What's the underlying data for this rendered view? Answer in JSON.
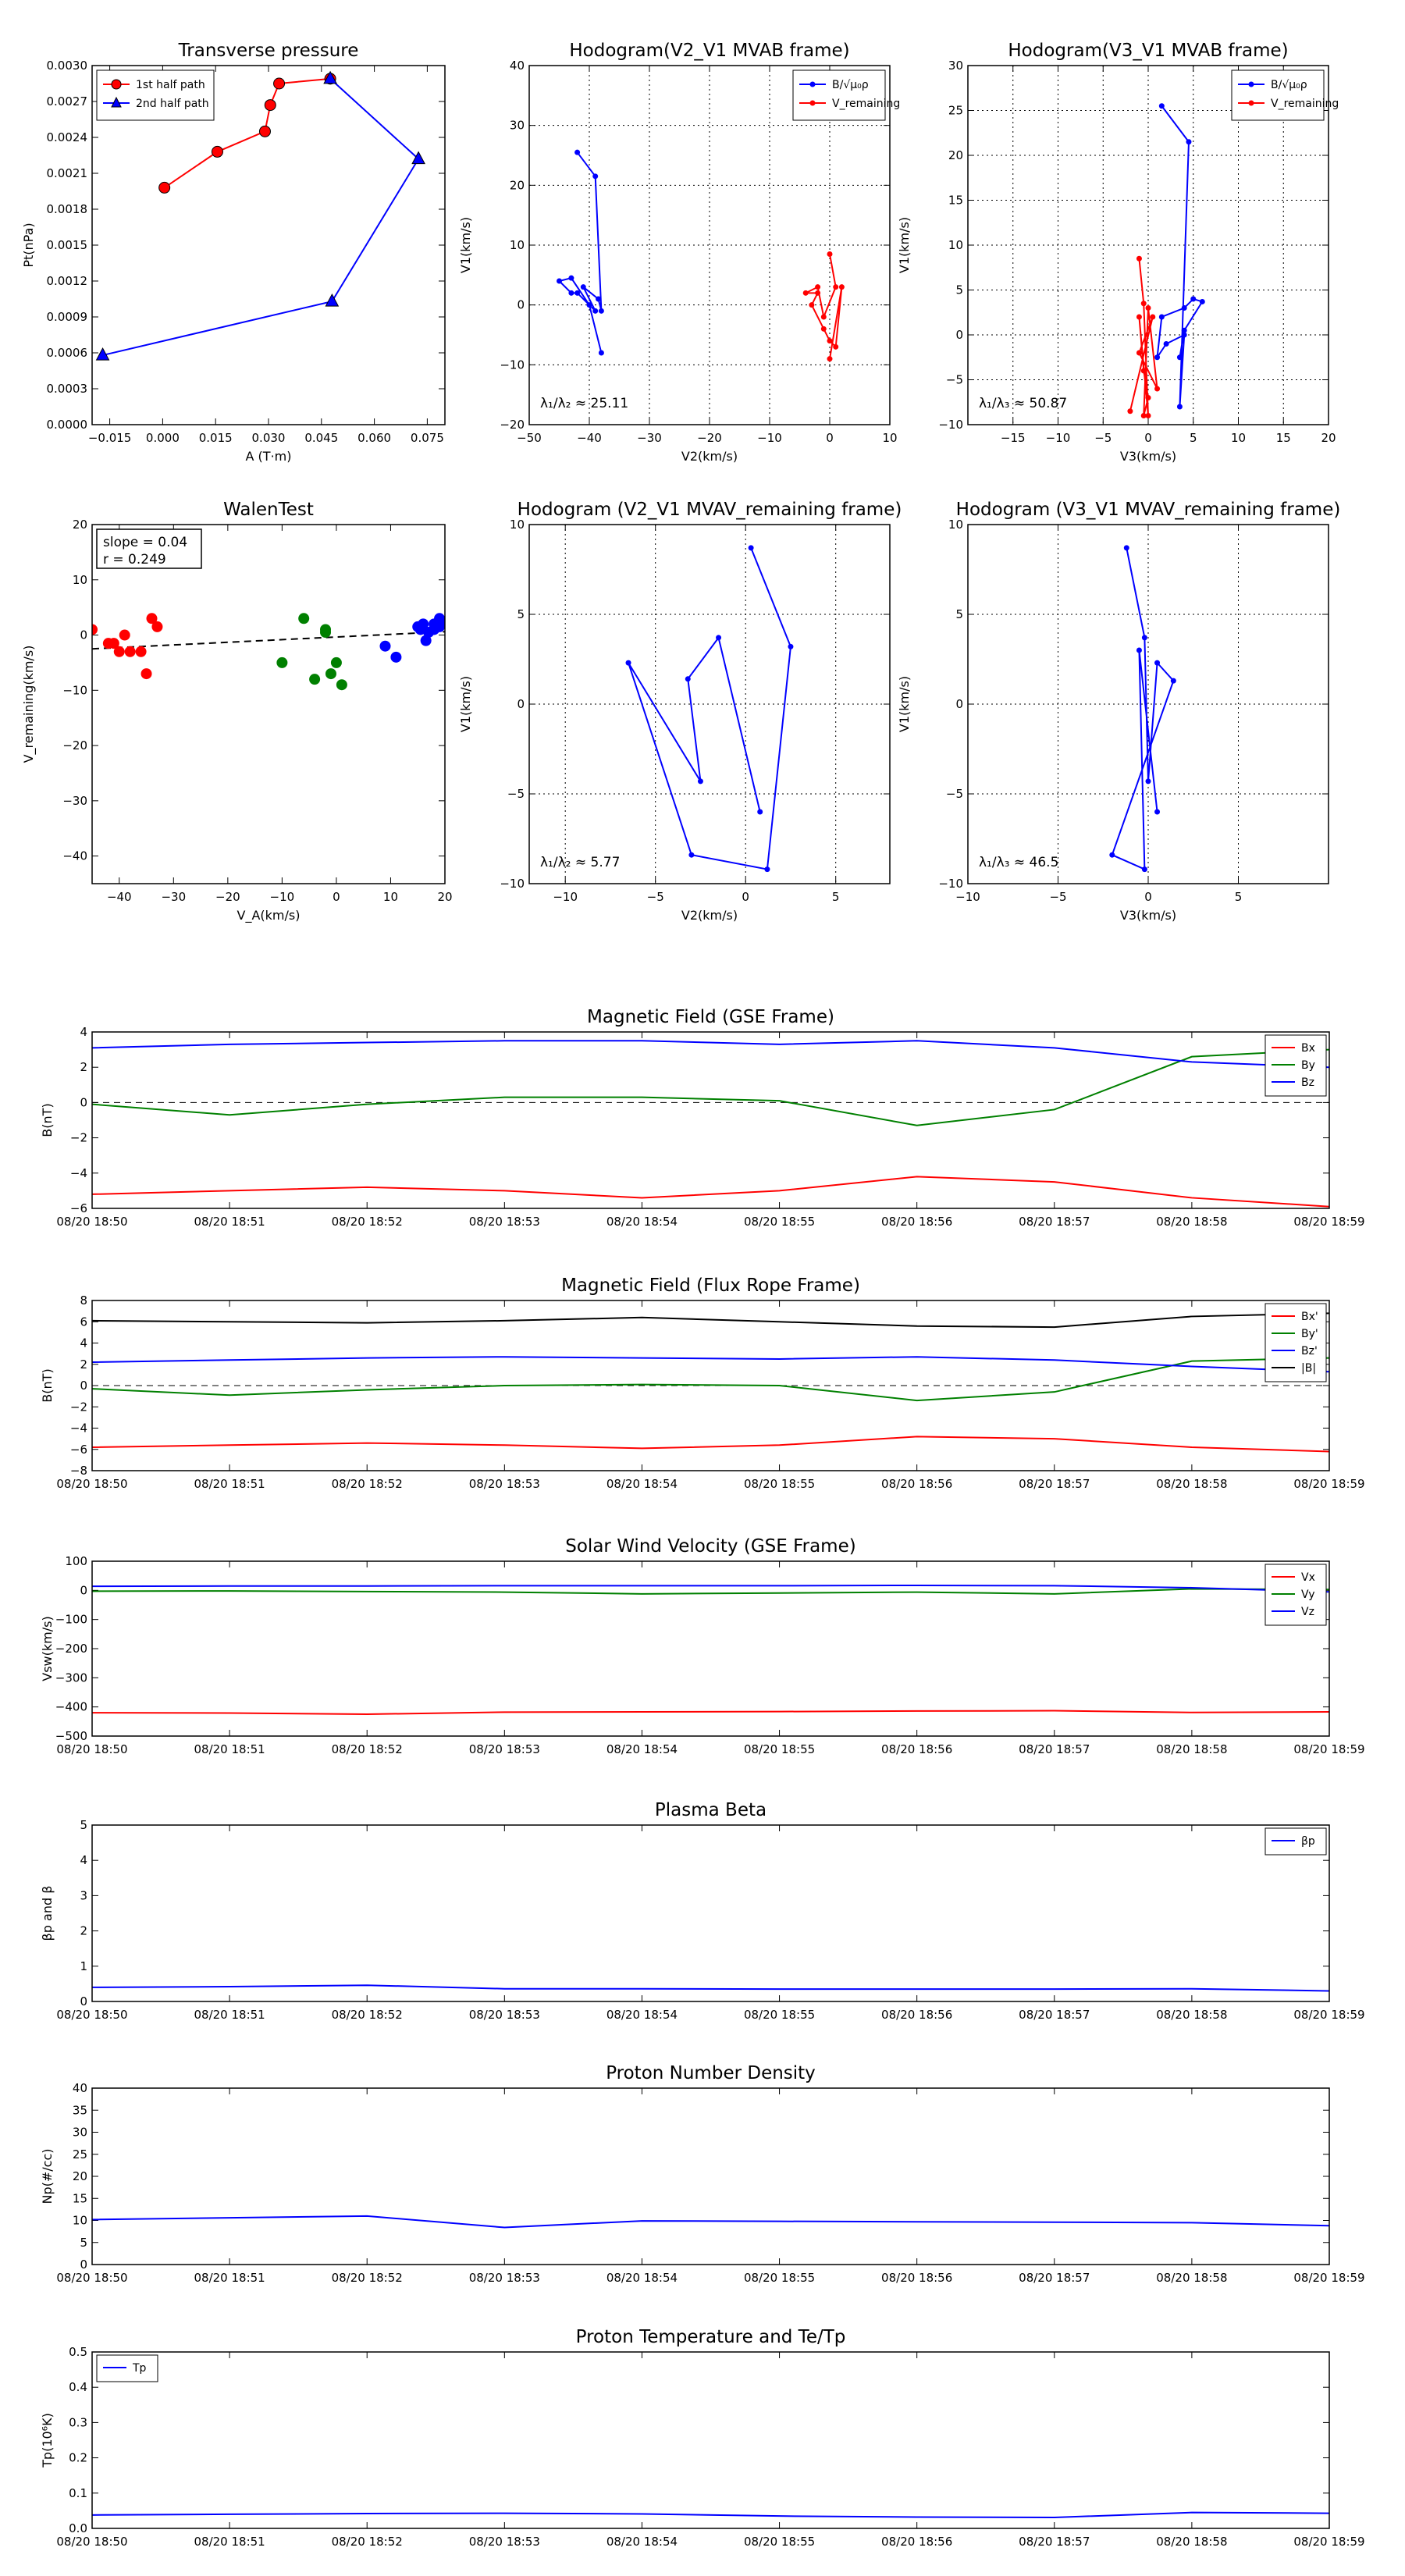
{
  "charts": [
    {
      "id": "p1",
      "type": "line",
      "title": "Transverse pressure",
      "xlabel": "A (T·m)",
      "ylabel": "Pt(nPa)",
      "xlim": [
        -0.02,
        0.08
      ],
      "ylim": [
        0,
        0.003
      ],
      "xticks": [
        -0.015,
        0,
        0.015,
        0.03,
        0.045,
        0.06,
        0.075
      ],
      "xtick_labels": [
        "−0.015",
        "0.000",
        "0.015",
        "0.030",
        "0.045",
        "0.060",
        "0.075"
      ],
      "yticks": [
        0,
        0.0003,
        0.0006,
        0.0009,
        0.0012,
        0.0015,
        0.0018,
        0.0021,
        0.0024,
        0.0027,
        0.003
      ],
      "ytick_labels": [
        "0.0000",
        "0.0003",
        "0.0006",
        "0.0009",
        "0.0012",
        "0.0015",
        "0.0018",
        "0.0021",
        "0.0024",
        "0.0027",
        "0.0030"
      ],
      "grid": false,
      "legend": "top-left",
      "series": [
        {
          "name": "1st half path",
          "color": "#ff0000",
          "marker": "circle",
          "x": [
            0.0005,
            0.0155,
            0.029,
            0.0305,
            0.033,
            0.0475
          ],
          "y": [
            0.00198,
            0.00228,
            0.00245,
            0.00267,
            0.00285,
            0.00289
          ]
        },
        {
          "name": "2nd half path",
          "color": "#0000ff",
          "marker": "triangle",
          "x": [
            0.0475,
            0.0725,
            0.048,
            -0.017
          ],
          "y": [
            0.00289,
            0.00222,
            0.00103,
            0.00058
          ]
        }
      ]
    },
    {
      "id": "p2",
      "type": "line",
      "title": "Hodogram(V2_V1 MVAB frame)",
      "xlabel": "V2(km/s)",
      "ylabel": "V1(km/s)",
      "xlim": [
        -50,
        10
      ],
      "ylim": [
        -20,
        40
      ],
      "xticks": [
        -50,
        -40,
        -30,
        -20,
        -10,
        0,
        10
      ],
      "xtick_labels": [
        "−50",
        "−40",
        "−30",
        "−20",
        "−10",
        "0",
        "10"
      ],
      "yticks": [
        -20,
        -10,
        0,
        10,
        20,
        30,
        40
      ],
      "ytick_labels": [
        "−20",
        "−10",
        "0",
        "10",
        "20",
        "30",
        "40"
      ],
      "grid": true,
      "legend": "top-right",
      "annotation": "λ₁/λ₂ ≈ 25.11",
      "series": [
        {
          "name": "B/√μ₀ρ",
          "color": "#0000ff",
          "marker": "dot",
          "x": [
            -42,
            -39,
            -38,
            -38.5,
            -41,
            -39,
            -42,
            -43,
            -45,
            -43,
            -40,
            -38
          ],
          "y": [
            25.5,
            21.5,
            -1,
            1,
            3,
            -1,
            2,
            2,
            4,
            4.5,
            0,
            -8
          ]
        },
        {
          "name": "V_remaining",
          "color": "#ff0000",
          "marker": "dot",
          "x": [
            0,
            1,
            -1,
            -2,
            -4,
            -2,
            -3,
            -1,
            0,
            1,
            2,
            0
          ],
          "y": [
            8.5,
            3,
            -2,
            3,
            2,
            2,
            0,
            -4,
            -6,
            -7,
            3,
            -9
          ]
        }
      ]
    },
    {
      "id": "p3",
      "type": "line",
      "title": "Hodogram(V3_V1 MVAB frame)",
      "xlabel": "V3(km/s)",
      "ylabel": "V1(km/s)",
      "xlim": [
        -20,
        20
      ],
      "ylim": [
        -10,
        30
      ],
      "xticks": [
        -15,
        -10,
        -5,
        0,
        5,
        10,
        15,
        20
      ],
      "xtick_labels": [
        "−15",
        "−10",
        "−5",
        "0",
        "5",
        "10",
        "15",
        "20"
      ],
      "yticks": [
        -10,
        -5,
        0,
        5,
        10,
        15,
        20,
        25,
        30
      ],
      "ytick_labels": [
        "−10",
        "−5",
        "0",
        "5",
        "10",
        "15",
        "20",
        "25",
        "30"
      ],
      "grid": true,
      "legend": "top-right",
      "annotation": "λ₁/λ₃ ≈ 50.87",
      "series": [
        {
          "name": "B/√μ₀ρ",
          "color": "#0000ff",
          "marker": "dot",
          "x": [
            1.5,
            4.5,
            3.5,
            4,
            2,
            1,
            1.5,
            4,
            5,
            6,
            4,
            3.5
          ],
          "y": [
            25.5,
            21.5,
            -8,
            0,
            -1,
            -2.5,
            2,
            3,
            4,
            3.7,
            0.5,
            -2.5
          ]
        },
        {
          "name": "V_remaining",
          "color": "#ff0000",
          "marker": "dot",
          "x": [
            -1,
            -0.5,
            0,
            -1,
            -0.5,
            0,
            -0.5,
            0,
            1,
            -1,
            0.5,
            -2
          ],
          "y": [
            8.5,
            3.5,
            -9,
            2,
            -4,
            -7,
            -9,
            3,
            -6,
            -2,
            2,
            -8.5
          ]
        }
      ]
    },
    {
      "id": "p4",
      "type": "scatter",
      "title": "WalenTest",
      "xlabel": "V_A(km/s)",
      "ylabel": "V_remaining(km/s)",
      "xlim": [
        -45,
        20
      ],
      "ylim": [
        -45,
        20
      ],
      "xticks": [
        -40,
        -30,
        -20,
        -10,
        0,
        10,
        20
      ],
      "xtick_labels": [
        "−40",
        "−30",
        "−20",
        "−10",
        "0",
        "10",
        "20"
      ],
      "yticks": [
        -40,
        -30,
        -20,
        -10,
        0,
        10,
        20
      ],
      "ytick_labels": [
        "−40",
        "−30",
        "−20",
        "−10",
        "0",
        "10",
        "20"
      ],
      "grid": false,
      "annotation_lines": [
        "slope = 0.04",
        "r = 0.249"
      ],
      "fit_line": {
        "x": [
          -45,
          20
        ],
        "y": [
          -2.5,
          0.6
        ]
      },
      "series": [
        {
          "color": "#ff0000",
          "x": [
            -45,
            -42,
            -41,
            -40,
            -39,
            -38,
            -36,
            -35,
            -34,
            -33
          ],
          "y": [
            1,
            -1.5,
            -1.5,
            -3,
            0,
            -3,
            -3,
            -7,
            3,
            1.5
          ]
        },
        {
          "color": "#008000",
          "x": [
            -10,
            -6,
            -4,
            -2,
            -2,
            -1,
            0,
            1
          ],
          "y": [
            -5,
            3,
            -8,
            0.5,
            1,
            -7,
            -5,
            -9
          ]
        },
        {
          "color": "#0000ff",
          "x": [
            9,
            11,
            15,
            15.5,
            16,
            16.5,
            17,
            18,
            19,
            20,
            18,
            19
          ],
          "y": [
            -2,
            -4,
            1.5,
            1,
            2,
            -1,
            0.5,
            2,
            3,
            2.5,
            1,
            1.5
          ]
        }
      ]
    },
    {
      "id": "p5",
      "type": "line",
      "title": "Hodogram (V2_V1 MVAV_remaining frame)",
      "xlabel": "V2(km/s)",
      "ylabel": "V1(km/s)",
      "xlim": [
        -12,
        8
      ],
      "ylim": [
        -10,
        10
      ],
      "xticks": [
        -10,
        -5,
        0,
        5
      ],
      "xtick_labels": [
        "−10",
        "−5",
        "0",
        "5"
      ],
      "yticks": [
        -10,
        -5,
        0,
        5,
        10
      ],
      "ytick_labels": [
        "−10",
        "−5",
        "0",
        "5",
        "10"
      ],
      "grid": true,
      "annotation": "λ₁/λ₂ ≈ 5.77",
      "series": [
        {
          "color": "#0000ff",
          "marker": "dot",
          "x": [
            0.3,
            2.5,
            1.2,
            -3,
            -6.5,
            -2.5,
            -3.2,
            -1.5,
            0.8
          ],
          "y": [
            8.7,
            3.2,
            -9.2,
            -8.4,
            2.3,
            -4.3,
            1.4,
            3.7,
            -6
          ]
        }
      ]
    },
    {
      "id": "p6",
      "type": "line",
      "title": "Hodogram (V3_V1 MVAV_remaining frame)",
      "xlabel": "V3(km/s)",
      "ylabel": "V1(km/s)",
      "xlim": [
        -10,
        10
      ],
      "ylim": [
        -10,
        10
      ],
      "xticks": [
        -10,
        -5,
        0,
        5
      ],
      "xtick_labels": [
        "−10",
        "−5",
        "0",
        "5"
      ],
      "yticks": [
        -10,
        -5,
        0,
        5,
        10
      ],
      "ytick_labels": [
        "−10",
        "−5",
        "0",
        "5",
        "10"
      ],
      "grid": true,
      "annotation": "λ₁/λ₃ ≈ 46.5",
      "series": [
        {
          "color": "#0000ff",
          "marker": "dot",
          "x": [
            -1.2,
            -0.2,
            0,
            0.5,
            1.4,
            -2,
            -0.2,
            -0.5,
            0.5
          ],
          "y": [
            8.7,
            3.7,
            -4.3,
            2.3,
            1.3,
            -8.4,
            -9.2,
            3.0,
            -6
          ]
        }
      ]
    },
    {
      "id": "ts1",
      "type": "line",
      "title": "Magnetic Field (GSE Frame)",
      "ylabel": "B(nT)",
      "ylim": [
        -6,
        4
      ],
      "yticks": [
        -6,
        -4,
        -2,
        0,
        2,
        4
      ],
      "ytick_labels": [
        "−6",
        "−4",
        "−2",
        "0",
        "2",
        "4"
      ],
      "zero_line": true,
      "legend": "top-right",
      "series": [
        {
          "name": "Bx",
          "color": "#ff0000",
          "values": [
            -5.2,
            -5.0,
            -4.8,
            -5.0,
            -5.4,
            -5.0,
            -4.2,
            -4.5,
            -5.4,
            -5.9
          ]
        },
        {
          "name": "By",
          "color": "#008000",
          "values": [
            -0.1,
            -0.7,
            -0.1,
            0.3,
            0.3,
            0.1,
            -1.3,
            -0.4,
            2.6,
            3.0
          ]
        },
        {
          "name": "Bz",
          "color": "#0000ff",
          "values": [
            3.1,
            3.3,
            3.4,
            3.5,
            3.5,
            3.3,
            3.5,
            3.1,
            2.3,
            2.0
          ]
        }
      ]
    },
    {
      "id": "ts2",
      "type": "line",
      "title": "Magnetic Field (Flux Rope Frame)",
      "ylabel": "B(nT)",
      "ylim": [
        -8,
        8
      ],
      "yticks": [
        -8,
        -6,
        -4,
        -2,
        0,
        2,
        4,
        6,
        8
      ],
      "ytick_labels": [
        "−8",
        "−6",
        "−4",
        "−2",
        "0",
        "2",
        "4",
        "6",
        "8"
      ],
      "zero_line": true,
      "legend": "top-right",
      "series": [
        {
          "name": "Bx'",
          "color": "#ff0000",
          "values": [
            -5.8,
            -5.6,
            -5.4,
            -5.6,
            -5.9,
            -5.6,
            -4.8,
            -5.0,
            -5.8,
            -6.2
          ]
        },
        {
          "name": "By'",
          "color": "#008000",
          "values": [
            -0.3,
            -0.9,
            -0.4,
            0.0,
            0.1,
            0.0,
            -1.4,
            -0.6,
            2.3,
            2.6
          ]
        },
        {
          "name": "Bz'",
          "color": "#0000ff",
          "values": [
            2.2,
            2.4,
            2.6,
            2.7,
            2.6,
            2.5,
            2.7,
            2.4,
            1.8,
            1.3
          ]
        },
        {
          "name": "|B|",
          "color": "#000000",
          "values": [
            6.1,
            6.0,
            5.9,
            6.1,
            6.4,
            6.0,
            5.6,
            5.5,
            6.5,
            6.8
          ]
        }
      ]
    },
    {
      "id": "ts3",
      "type": "line",
      "title": "Solar Wind Velocity (GSE Frame)",
      "ylabel": "Vsw(km/s)",
      "ylim": [
        -500,
        100
      ],
      "yticks": [
        -500,
        -400,
        -300,
        -200,
        -100,
        0,
        100
      ],
      "ytick_labels": [
        "−500",
        "−400",
        "−300",
        "−200",
        "−100",
        "0",
        "100"
      ],
      "legend": "top-right",
      "series": [
        {
          "name": "Vx",
          "color": "#ff0000",
          "values": [
            -420,
            -421,
            -425,
            -418,
            -417,
            -416,
            -414,
            -413,
            -419,
            -417
          ]
        },
        {
          "name": "Vy",
          "color": "#008000",
          "values": [
            -3,
            -2,
            -4,
            -6,
            -12,
            -9,
            -6,
            -12,
            5,
            3
          ]
        },
        {
          "name": "Vz",
          "color": "#0000ff",
          "values": [
            14,
            15,
            15,
            16,
            16,
            16,
            17,
            16,
            9,
            -5
          ]
        }
      ]
    },
    {
      "id": "ts4",
      "type": "line",
      "title": "Plasma Beta",
      "ylabel": "βp and β",
      "ylim": [
        0,
        5
      ],
      "yticks": [
        0,
        1,
        2,
        3,
        4,
        5
      ],
      "ytick_labels": [
        "0",
        "1",
        "2",
        "3",
        "4",
        "5"
      ],
      "legend": "top-right",
      "series": [
        {
          "name": "βp",
          "color": "#0000ff",
          "values": [
            0.4,
            0.42,
            0.46,
            0.36,
            0.36,
            0.35,
            0.35,
            0.35,
            0.36,
            0.3
          ]
        }
      ]
    },
    {
      "id": "ts5",
      "type": "line",
      "title": "Proton Number Density",
      "ylabel": "Np(#/cc)",
      "ylim": [
        0,
        40
      ],
      "yticks": [
        0,
        5,
        10,
        15,
        20,
        25,
        30,
        35,
        40
      ],
      "ytick_labels": [
        "0",
        "5",
        "10",
        "15",
        "20",
        "25",
        "30",
        "35",
        "40"
      ],
      "series": [
        {
          "color": "#0000ff",
          "values": [
            10.2,
            10.6,
            11.0,
            8.4,
            9.9,
            9.8,
            9.7,
            9.6,
            9.5,
            8.8
          ]
        }
      ]
    },
    {
      "id": "ts6",
      "type": "line",
      "title": "Proton Temperature and Te/Tp",
      "ylabel": "Tp(10⁶K)",
      "ylim": [
        0,
        0.5
      ],
      "yticks": [
        0,
        0.1,
        0.2,
        0.3,
        0.4,
        0.5
      ],
      "ytick_labels": [
        "0.0",
        "0.1",
        "0.2",
        "0.3",
        "0.4",
        "0.5"
      ],
      "legend": "top-left",
      "series": [
        {
          "name": "Tp",
          "color": "#0000ff",
          "values": [
            0.038,
            0.04,
            0.042,
            0.043,
            0.041,
            0.035,
            0.032,
            0.031,
            0.045,
            0.043
          ]
        }
      ]
    }
  ],
  "time_ticks": [
    "08/20 18:50",
    "08/20 18:51",
    "08/20 18:52",
    "08/20 18:53",
    "08/20 18:54",
    "08/20 18:55",
    "08/20 18:56",
    "08/20 18:57",
    "08/20 18:58",
    "08/20 18:59"
  ]
}
